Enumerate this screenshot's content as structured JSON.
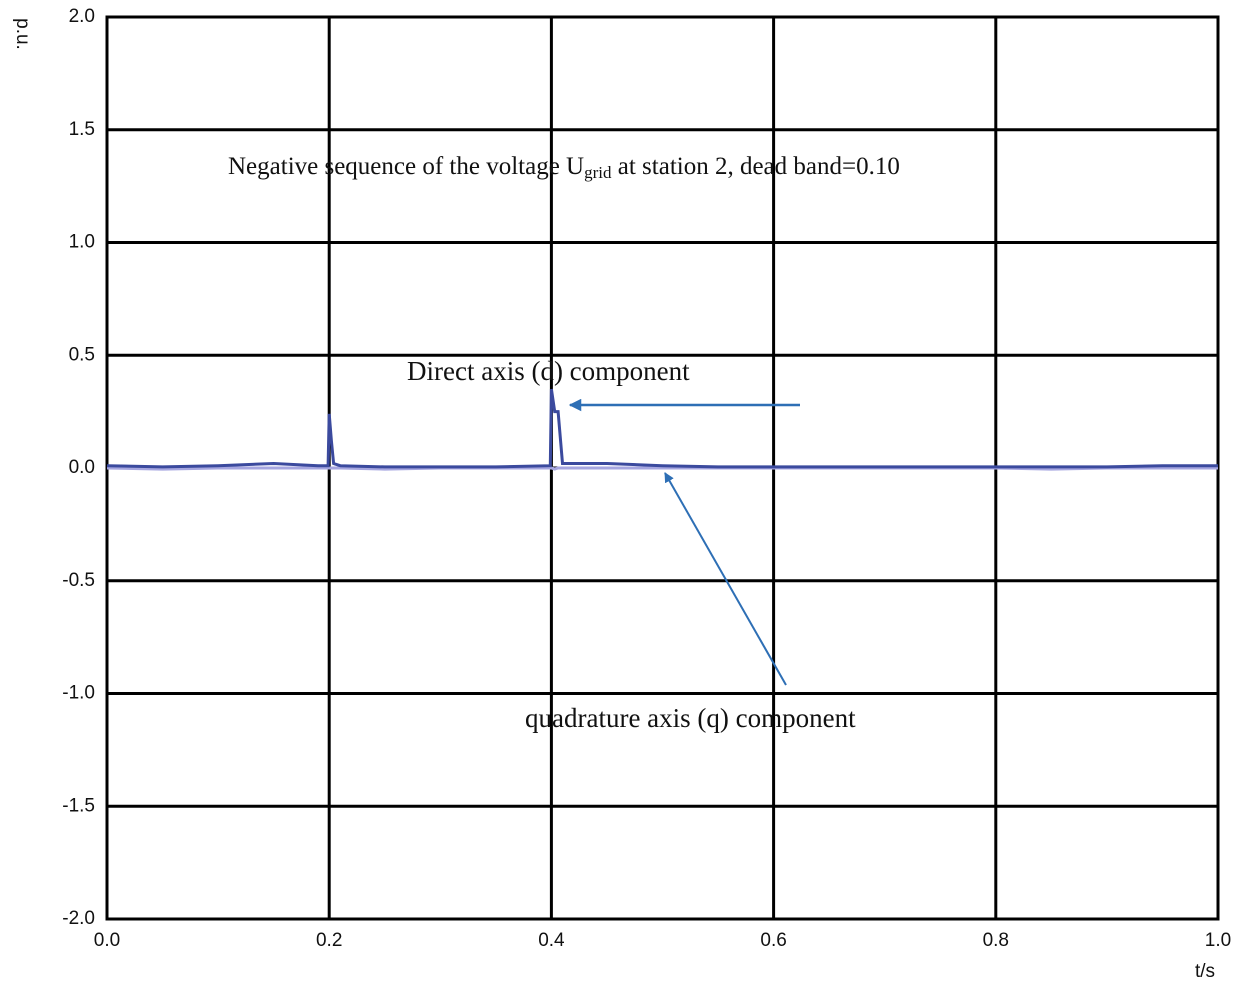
{
  "chart_data": {
    "type": "line",
    "title": {
      "before": "Negative  sequence of the voltage U",
      "sub": "grid",
      "after": " at station 2, dead band=0.10"
    },
    "x_label": "t/s",
    "y_label": "p.u.",
    "x": [
      0,
      0.05,
      0.1,
      0.15,
      0.19,
      0.199,
      0.2,
      0.202,
      0.204,
      0.21,
      0.25,
      0.3,
      0.35,
      0.399,
      0.4,
      0.403,
      0.406,
      0.41,
      0.412,
      0.45,
      0.5,
      0.55,
      0.6,
      0.65,
      0.7,
      0.75,
      0.8,
      0.85,
      0.9,
      0.95,
      1.0
    ],
    "series": [
      {
        "name": "Direct axis (d) component",
        "color": "#3b4a9e",
        "values": [
          0.01,
          0.005,
          0.01,
          0.02,
          0.01,
          0.01,
          0.24,
          0.12,
          0.02,
          0.01,
          0.005,
          0.005,
          0.005,
          0.01,
          0.35,
          0.25,
          0.25,
          0.02,
          0.02,
          0.02,
          0.01,
          0.005,
          0.005,
          0.005,
          0.005,
          0.005,
          0.005,
          0.005,
          0.005,
          0.01,
          0.01
        ]
      },
      {
        "name": "quadrature axis (q) component",
        "color": "#a6a6e0",
        "values": [
          0,
          -0.005,
          0,
          0,
          0,
          0,
          0,
          0,
          0,
          0,
          -0.005,
          0,
          0,
          0,
          0,
          -0.005,
          0,
          0,
          0,
          0,
          0,
          0,
          0,
          0,
          0,
          0,
          0,
          -0.005,
          0,
          0,
          0
        ]
      }
    ],
    "xlim": [
      0,
      1
    ],
    "xticks": [
      {
        "value": 0,
        "label": "0.0"
      },
      0.2,
      0.4,
      0.6,
      0.8,
      {
        "value": 1,
        "label": "1.0"
      }
    ],
    "ylim": [
      -2,
      2
    ],
    "yticks": [
      {
        "value": 2,
        "label": "2.0"
      },
      1.5,
      {
        "value": 1,
        "label": "1.0"
      },
      0.5,
      {
        "value": 0,
        "label": "0.0"
      },
      -0.5,
      {
        "value": -1,
        "label": "-1.0"
      },
      -1.5,
      {
        "value": -2,
        "label": "-2.0"
      }
    ],
    "grid": true
  }
}
